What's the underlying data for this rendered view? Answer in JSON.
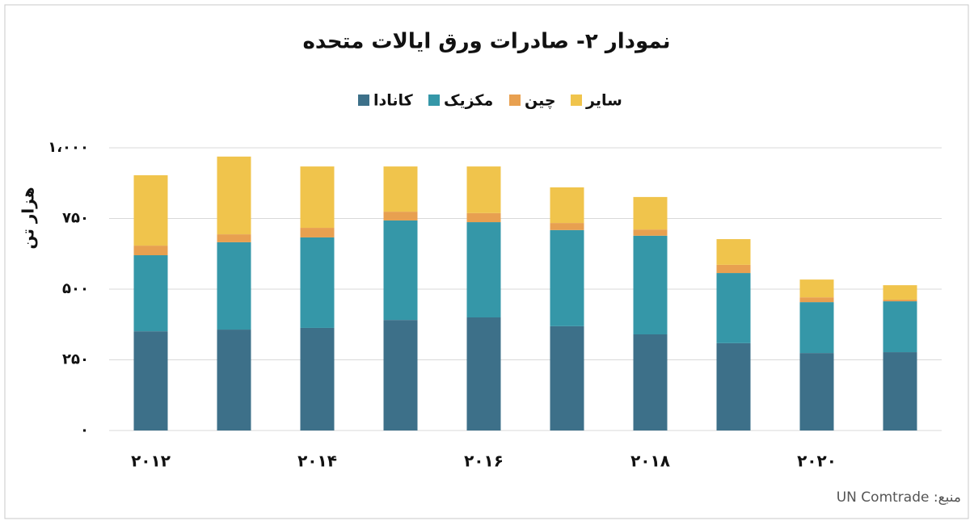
{
  "chart_data": {
    "type": "stacked-bar",
    "title": "نمودار ۲- صادرات ورق ایالات متحده",
    "y_label": "هزار تن",
    "source": "منبع: UN Comtrade",
    "categories": [
      "۲۰۱۲",
      null,
      "۲۰۱۴",
      null,
      "۲۰۱۶",
      null,
      "۲۰۱۸",
      null,
      "۲۰۲۰",
      null
    ],
    "series": [
      {
        "name": "کانادا",
        "color": "#3d7089",
        "values": [
          351,
          357,
          363,
          391,
          400,
          369,
          340,
          309,
          274,
          277
        ]
      },
      {
        "name": "مکزیک",
        "color": "#3597a8",
        "values": [
          269,
          309,
          320,
          352,
          337,
          340,
          349,
          248,
          180,
          180
        ]
      },
      {
        "name": "چین",
        "color": "#e8a050",
        "values": [
          34,
          28,
          34,
          31,
          32,
          25,
          22,
          29,
          17,
          6
        ]
      },
      {
        "name": "سایر",
        "color": "#f0c44c",
        "values": [
          249,
          275,
          217,
          160,
          165,
          126,
          115,
          91,
          63,
          51
        ]
      }
    ],
    "ylim": [
      0,
      1000
    ],
    "yticks": [
      {
        "value": 0,
        "label": "۰"
      },
      {
        "value": 250,
        "label": "۲۵۰"
      },
      {
        "value": 500,
        "label": "۵۰۰"
      },
      {
        "value": 750,
        "label": "۷۵۰"
      },
      {
        "value": 1000,
        "label": "۱،۰۰۰"
      }
    ],
    "grid": true
  }
}
